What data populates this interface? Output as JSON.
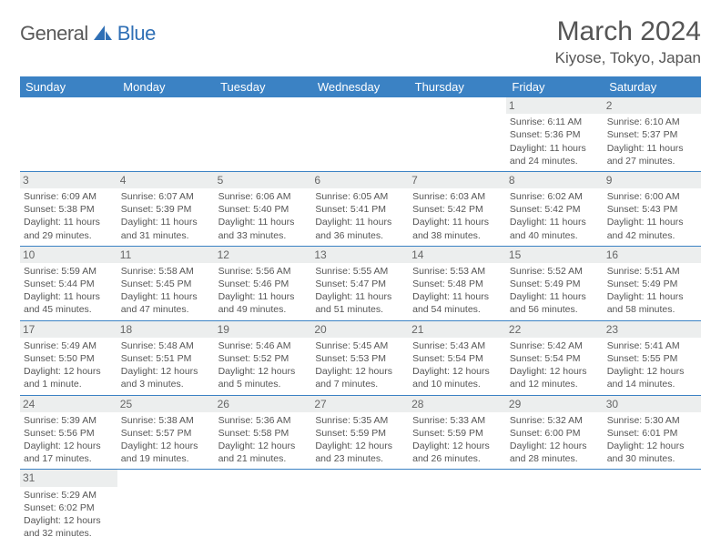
{
  "brand": {
    "part1": "General",
    "part2": "Blue"
  },
  "title": "March 2024",
  "location": "Kiyose, Tokyo, Japan",
  "colors": {
    "header_bg": "#3b82c4",
    "header_text": "#ffffff",
    "daynum_bg": "#eceeee",
    "border": "#3b82c4",
    "text": "#555555",
    "logo_blue": "#2f6fb5"
  },
  "weekdays": [
    "Sunday",
    "Monday",
    "Tuesday",
    "Wednesday",
    "Thursday",
    "Friday",
    "Saturday"
  ],
  "cells": [
    [
      null,
      null,
      null,
      null,
      null,
      {
        "n": "1",
        "sr": "Sunrise: 6:11 AM",
        "ss": "Sunset: 5:36 PM",
        "d1": "Daylight: 11 hours",
        "d2": "and 24 minutes."
      },
      {
        "n": "2",
        "sr": "Sunrise: 6:10 AM",
        "ss": "Sunset: 5:37 PM",
        "d1": "Daylight: 11 hours",
        "d2": "and 27 minutes."
      }
    ],
    [
      {
        "n": "3",
        "sr": "Sunrise: 6:09 AM",
        "ss": "Sunset: 5:38 PM",
        "d1": "Daylight: 11 hours",
        "d2": "and 29 minutes."
      },
      {
        "n": "4",
        "sr": "Sunrise: 6:07 AM",
        "ss": "Sunset: 5:39 PM",
        "d1": "Daylight: 11 hours",
        "d2": "and 31 minutes."
      },
      {
        "n": "5",
        "sr": "Sunrise: 6:06 AM",
        "ss": "Sunset: 5:40 PM",
        "d1": "Daylight: 11 hours",
        "d2": "and 33 minutes."
      },
      {
        "n": "6",
        "sr": "Sunrise: 6:05 AM",
        "ss": "Sunset: 5:41 PM",
        "d1": "Daylight: 11 hours",
        "d2": "and 36 minutes."
      },
      {
        "n": "7",
        "sr": "Sunrise: 6:03 AM",
        "ss": "Sunset: 5:42 PM",
        "d1": "Daylight: 11 hours",
        "d2": "and 38 minutes."
      },
      {
        "n": "8",
        "sr": "Sunrise: 6:02 AM",
        "ss": "Sunset: 5:42 PM",
        "d1": "Daylight: 11 hours",
        "d2": "and 40 minutes."
      },
      {
        "n": "9",
        "sr": "Sunrise: 6:00 AM",
        "ss": "Sunset: 5:43 PM",
        "d1": "Daylight: 11 hours",
        "d2": "and 42 minutes."
      }
    ],
    [
      {
        "n": "10",
        "sr": "Sunrise: 5:59 AM",
        "ss": "Sunset: 5:44 PM",
        "d1": "Daylight: 11 hours",
        "d2": "and 45 minutes."
      },
      {
        "n": "11",
        "sr": "Sunrise: 5:58 AM",
        "ss": "Sunset: 5:45 PM",
        "d1": "Daylight: 11 hours",
        "d2": "and 47 minutes."
      },
      {
        "n": "12",
        "sr": "Sunrise: 5:56 AM",
        "ss": "Sunset: 5:46 PM",
        "d1": "Daylight: 11 hours",
        "d2": "and 49 minutes."
      },
      {
        "n": "13",
        "sr": "Sunrise: 5:55 AM",
        "ss": "Sunset: 5:47 PM",
        "d1": "Daylight: 11 hours",
        "d2": "and 51 minutes."
      },
      {
        "n": "14",
        "sr": "Sunrise: 5:53 AM",
        "ss": "Sunset: 5:48 PM",
        "d1": "Daylight: 11 hours",
        "d2": "and 54 minutes."
      },
      {
        "n": "15",
        "sr": "Sunrise: 5:52 AM",
        "ss": "Sunset: 5:49 PM",
        "d1": "Daylight: 11 hours",
        "d2": "and 56 minutes."
      },
      {
        "n": "16",
        "sr": "Sunrise: 5:51 AM",
        "ss": "Sunset: 5:49 PM",
        "d1": "Daylight: 11 hours",
        "d2": "and 58 minutes."
      }
    ],
    [
      {
        "n": "17",
        "sr": "Sunrise: 5:49 AM",
        "ss": "Sunset: 5:50 PM",
        "d1": "Daylight: 12 hours",
        "d2": "and 1 minute."
      },
      {
        "n": "18",
        "sr": "Sunrise: 5:48 AM",
        "ss": "Sunset: 5:51 PM",
        "d1": "Daylight: 12 hours",
        "d2": "and 3 minutes."
      },
      {
        "n": "19",
        "sr": "Sunrise: 5:46 AM",
        "ss": "Sunset: 5:52 PM",
        "d1": "Daylight: 12 hours",
        "d2": "and 5 minutes."
      },
      {
        "n": "20",
        "sr": "Sunrise: 5:45 AM",
        "ss": "Sunset: 5:53 PM",
        "d1": "Daylight: 12 hours",
        "d2": "and 7 minutes."
      },
      {
        "n": "21",
        "sr": "Sunrise: 5:43 AM",
        "ss": "Sunset: 5:54 PM",
        "d1": "Daylight: 12 hours",
        "d2": "and 10 minutes."
      },
      {
        "n": "22",
        "sr": "Sunrise: 5:42 AM",
        "ss": "Sunset: 5:54 PM",
        "d1": "Daylight: 12 hours",
        "d2": "and 12 minutes."
      },
      {
        "n": "23",
        "sr": "Sunrise: 5:41 AM",
        "ss": "Sunset: 5:55 PM",
        "d1": "Daylight: 12 hours",
        "d2": "and 14 minutes."
      }
    ],
    [
      {
        "n": "24",
        "sr": "Sunrise: 5:39 AM",
        "ss": "Sunset: 5:56 PM",
        "d1": "Daylight: 12 hours",
        "d2": "and 17 minutes."
      },
      {
        "n": "25",
        "sr": "Sunrise: 5:38 AM",
        "ss": "Sunset: 5:57 PM",
        "d1": "Daylight: 12 hours",
        "d2": "and 19 minutes."
      },
      {
        "n": "26",
        "sr": "Sunrise: 5:36 AM",
        "ss": "Sunset: 5:58 PM",
        "d1": "Daylight: 12 hours",
        "d2": "and 21 minutes."
      },
      {
        "n": "27",
        "sr": "Sunrise: 5:35 AM",
        "ss": "Sunset: 5:59 PM",
        "d1": "Daylight: 12 hours",
        "d2": "and 23 minutes."
      },
      {
        "n": "28",
        "sr": "Sunrise: 5:33 AM",
        "ss": "Sunset: 5:59 PM",
        "d1": "Daylight: 12 hours",
        "d2": "and 26 minutes."
      },
      {
        "n": "29",
        "sr": "Sunrise: 5:32 AM",
        "ss": "Sunset: 6:00 PM",
        "d1": "Daylight: 12 hours",
        "d2": "and 28 minutes."
      },
      {
        "n": "30",
        "sr": "Sunrise: 5:30 AM",
        "ss": "Sunset: 6:01 PM",
        "d1": "Daylight: 12 hours",
        "d2": "and 30 minutes."
      }
    ],
    [
      {
        "n": "31",
        "sr": "Sunrise: 5:29 AM",
        "ss": "Sunset: 6:02 PM",
        "d1": "Daylight: 12 hours",
        "d2": "and 32 minutes."
      },
      null,
      null,
      null,
      null,
      null,
      null
    ]
  ]
}
